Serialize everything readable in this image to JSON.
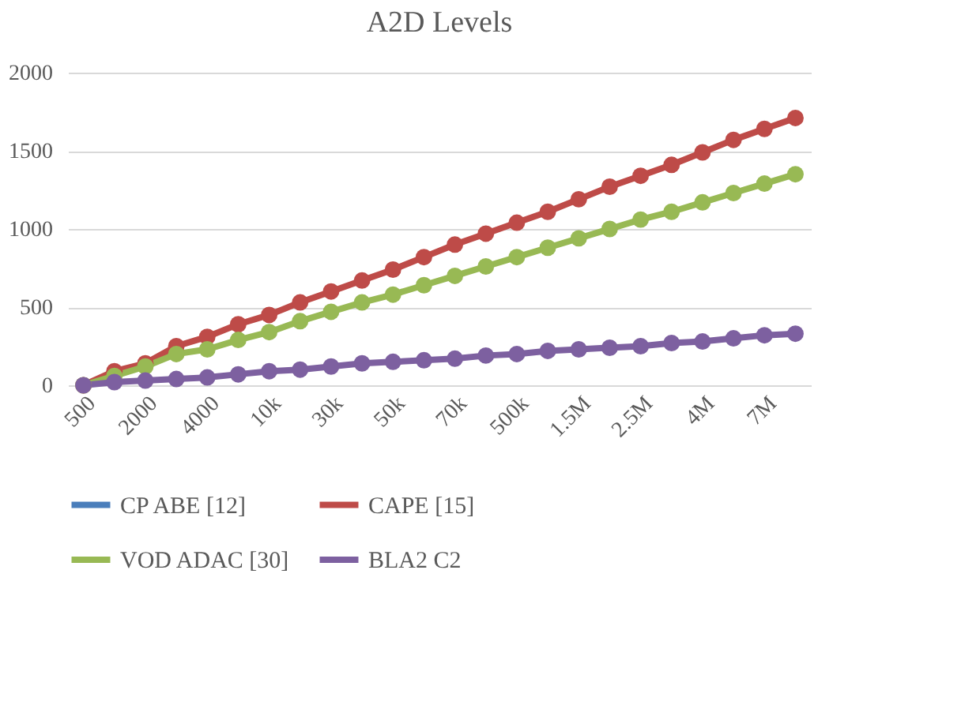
{
  "chart_data": {
    "type": "line",
    "title": "A2D Levels",
    "categories": [
      "500",
      null,
      "2000",
      null,
      "4000",
      null,
      "10k",
      null,
      "30k",
      null,
      "50k",
      null,
      "70k",
      null,
      "500k",
      null,
      "1.5M",
      null,
      "2.5M",
      null,
      "4M",
      null,
      "7M",
      null
    ],
    "series": [
      {
        "name": "CP ABE [12]",
        "color": "#4a7ebb",
        "values": [
          null,
          null,
          null,
          null,
          null,
          null,
          null,
          null,
          null,
          null,
          null,
          null,
          null,
          null,
          null,
          null,
          null,
          null,
          null,
          null,
          null,
          null,
          null,
          null
        ]
      },
      {
        "name": "CAPE [15]",
        "color": "#be4b48",
        "values": [
          0,
          90,
          140,
          250,
          310,
          390,
          450,
          530,
          600,
          670,
          740,
          820,
          900,
          970,
          1040,
          1110,
          1190,
          1270,
          1340,
          1410,
          1490,
          1570,
          1640,
          1710
        ]
      },
      {
        "name": "VOD ADAC [30]",
        "color": "#98b954",
        "values": [
          0,
          60,
          120,
          200,
          230,
          290,
          340,
          410,
          470,
          530,
          580,
          640,
          700,
          760,
          820,
          880,
          940,
          1000,
          1060,
          1110,
          1170,
          1230,
          1290,
          1350
        ]
      },
      {
        "name": "BLA2 C2",
        "color": "#7d60a0",
        "values": [
          0,
          20,
          30,
          40,
          50,
          70,
          90,
          100,
          120,
          140,
          150,
          160,
          170,
          190,
          200,
          220,
          230,
          240,
          250,
          270,
          280,
          300,
          320,
          330
        ]
      }
    ],
    "ylim": [
      0,
      2000
    ],
    "yticks": [
      0,
      500,
      1000,
      1500,
      2000
    ],
    "grid": "y",
    "legend": "bottom",
    "marker": "circle",
    "line_style": "solid"
  }
}
